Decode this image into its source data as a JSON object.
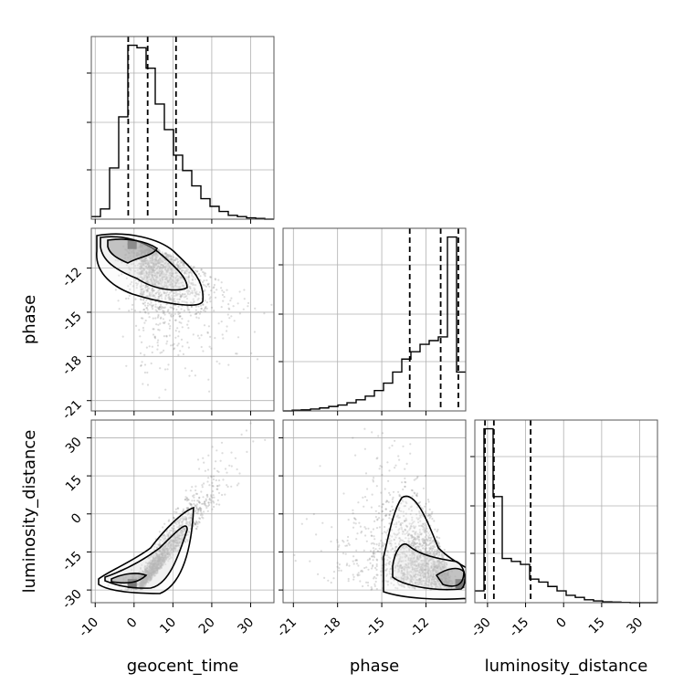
{
  "chart_data": {
    "type": "corner",
    "parameters": [
      "geocent_time",
      "phase",
      "luminosity_distance"
    ],
    "ranges": {
      "geocent_time": [
        -11,
        36
      ],
      "phase": [
        -21.7,
        -9.3
      ],
      "luminosity_distance": [
        -35,
        37
      ]
    },
    "ticks": {
      "geocent_time": [
        "-10",
        "0",
        "10",
        "20",
        "30"
      ],
      "phase": [
        "-21",
        "-18",
        "-15",
        "-12"
      ],
      "luminosity_distance": [
        "-30",
        "-15",
        "0",
        "15",
        "30"
      ]
    },
    "tick_values": {
      "geocent_time": [
        -10,
        0,
        10,
        20,
        30
      ],
      "phase": [
        -21,
        -18,
        -15,
        -12
      ],
      "luminosity_distance": [
        -30,
        -15,
        0,
        15,
        30
      ]
    },
    "quantiles": {
      "geocent_time": [
        -1.5,
        3.5,
        10.8
      ],
      "phase": [
        -13.1,
        -11.0,
        -9.8
      ],
      "luminosity_distance": [
        -31,
        -27.5,
        -13
      ]
    },
    "histograms": {
      "geocent_time": {
        "edges": [
          -11,
          -8.65,
          -6.3,
          -3.95,
          -1.6,
          0.75,
          3.1,
          5.45,
          7.8,
          10.15,
          12.5,
          14.85,
          17.2,
          19.55,
          21.9,
          24.25,
          26.6,
          28.95,
          31.3,
          33.65,
          36
        ],
        "counts": [
          1,
          4,
          20,
          40,
          68,
          67,
          59,
          45,
          35,
          25,
          19,
          13,
          8,
          5,
          3,
          1.5,
          1,
          0.5,
          0.3,
          0
        ]
      },
      "phase": {
        "edges": [
          -21.7,
          -21.08,
          -20.46,
          -19.84,
          -19.22,
          -18.6,
          -17.98,
          -17.36,
          -16.74,
          -16.12,
          -15.5,
          -14.88,
          -14.26,
          -13.64,
          -13.02,
          -12.4,
          -11.78,
          -11.16,
          -10.54,
          -9.92,
          -9.3
        ],
        "counts": [
          0,
          0.2,
          0.3,
          0.5,
          0.8,
          1.2,
          1.6,
          2.2,
          3,
          4,
          5.5,
          7.5,
          10.5,
          14,
          16,
          18,
          19,
          20,
          47,
          10.5
        ]
      },
      "luminosity_distance": {
        "edges": [
          -35,
          -31.4,
          -27.8,
          -24.2,
          -20.6,
          -17,
          -13.4,
          -9.8,
          -6.2,
          -2.6,
          1,
          4.6,
          8.2,
          11.8,
          15.4,
          19,
          22.6,
          26.2,
          29.8,
          33.4,
          37
        ],
        "counts": [
          4,
          59,
          36,
          15,
          14,
          13,
          8,
          7,
          5.5,
          4,
          2.5,
          1.8,
          1,
          0.6,
          0.3,
          0.2,
          0.1,
          0,
          0,
          0
        ]
      }
    },
    "scatter_seeds": {
      "geocent_time_vs_phase": 11,
      "geocent_time_vs_luminosity_distance": 23,
      "phase_vs_luminosity_distance": 37
    }
  }
}
